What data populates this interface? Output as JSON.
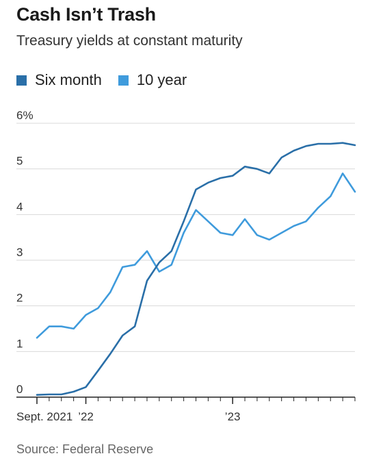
{
  "header": {
    "title": "Cash Isn’t Trash",
    "subtitle": "Treasury yields at constant maturity"
  },
  "footer": {
    "source": "Source: Federal Reserve"
  },
  "colors": {
    "six_month": "#2a6fa8",
    "ten_year": "#3f9bdc",
    "grid": "#d9d9d9",
    "axis": "#222222"
  },
  "chart_data": {
    "type": "line",
    "title": "Cash Isn’t Trash",
    "subtitle": "Treasury yields at constant maturity",
    "xlabel": "",
    "ylabel": "",
    "legend_position": "top-left",
    "grid": true,
    "xlim": [
      "2021-09",
      "2023-11"
    ],
    "ylim": [
      0,
      6
    ],
    "y_ticks": [
      {
        "value": 0,
        "label": "0"
      },
      {
        "value": 1,
        "label": "1"
      },
      {
        "value": 2,
        "label": "2"
      },
      {
        "value": 3,
        "label": "3"
      },
      {
        "value": 4,
        "label": "4"
      },
      {
        "value": 5,
        "label": "5"
      },
      {
        "value": 6,
        "label": "6%"
      }
    ],
    "x_ticks": [
      {
        "value": "2021-09",
        "label": "Sept. 2021"
      },
      {
        "value": "2022-01",
        "label": "’22"
      },
      {
        "value": "2023-01",
        "label": "’23"
      }
    ],
    "series": [
      {
        "name": "Six month",
        "color": "#2a6fa8",
        "x": [
          "2021-09",
          "2021-10",
          "2021-11",
          "2021-12",
          "2022-01",
          "2022-02",
          "2022-03",
          "2022-04",
          "2022-05",
          "2022-06",
          "2022-07",
          "2022-08",
          "2022-09",
          "2022-10",
          "2022-11",
          "2022-12",
          "2023-01",
          "2023-02",
          "2023-03",
          "2023-04",
          "2023-05",
          "2023-06",
          "2023-07",
          "2023-08",
          "2023-09",
          "2023-10",
          "2023-11"
        ],
        "values": [
          0.05,
          0.06,
          0.06,
          0.12,
          0.22,
          0.58,
          0.95,
          1.35,
          1.55,
          2.55,
          2.95,
          3.2,
          3.85,
          4.55,
          4.7,
          4.8,
          4.85,
          5.05,
          5.0,
          4.9,
          5.25,
          5.4,
          5.5,
          5.55,
          5.55,
          5.57,
          5.52
        ]
      },
      {
        "name": "10 year",
        "color": "#3f9bdc",
        "x": [
          "2021-09",
          "2021-10",
          "2021-11",
          "2021-12",
          "2022-01",
          "2022-02",
          "2022-03",
          "2022-04",
          "2022-05",
          "2022-06",
          "2022-07",
          "2022-08",
          "2022-09",
          "2022-10",
          "2022-11",
          "2022-12",
          "2023-01",
          "2023-02",
          "2023-03",
          "2023-04",
          "2023-05",
          "2023-06",
          "2023-07",
          "2023-08",
          "2023-09",
          "2023-10",
          "2023-11"
        ],
        "values": [
          1.3,
          1.55,
          1.55,
          1.5,
          1.8,
          1.95,
          2.3,
          2.85,
          2.9,
          3.2,
          2.75,
          2.9,
          3.6,
          4.1,
          3.85,
          3.6,
          3.55,
          3.9,
          3.55,
          3.45,
          3.6,
          3.75,
          3.85,
          4.15,
          4.4,
          4.9,
          4.5
        ]
      }
    ]
  }
}
